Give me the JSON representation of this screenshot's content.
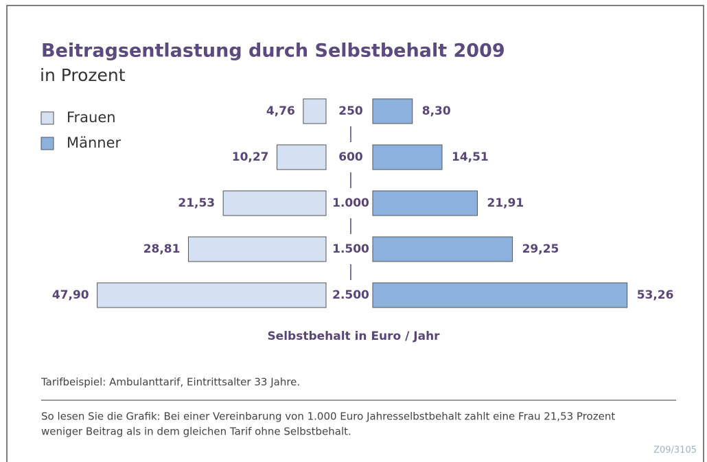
{
  "chart_data": {
    "type": "butterfly",
    "title": "Beitragsentlastung durch Selbstbehalt 2009",
    "subtitle": "in Prozent",
    "x_label": "Selbstbehalt in Euro / Jahr",
    "categories": [
      "250",
      "600",
      "1.000",
      "1.500",
      "2.500"
    ],
    "series": [
      {
        "name": "Frauen",
        "color": "#d5e1f3",
        "values": [
          4.76,
          10.27,
          21.53,
          28.81,
          47.9
        ],
        "value_labels": [
          "4,76",
          "10,27",
          "21,53",
          "28,81",
          "47,90"
        ]
      },
      {
        "name": "Männer",
        "color": "#8cb1dd",
        "values": [
          8.3,
          14.51,
          21.91,
          29.25,
          53.26
        ],
        "value_labels": [
          "8,30",
          "14,51",
          "21,91",
          "29,25",
          "53,26"
        ]
      }
    ],
    "note": "Tarifbeispiel: Ambulanttarif, Eintrittsalter 33 Jahre.",
    "reading_note": [
      "So lesen Sie die Grafik: Bei einer Vereinbarung von 1.000 Euro Jahresselbstbehalt zahlt eine Frau 21,53 Prozent",
      "weniger Beitrag als in dem gleichen Tarif ohne Selbstbehalt."
    ],
    "source": "Z09/3105"
  }
}
